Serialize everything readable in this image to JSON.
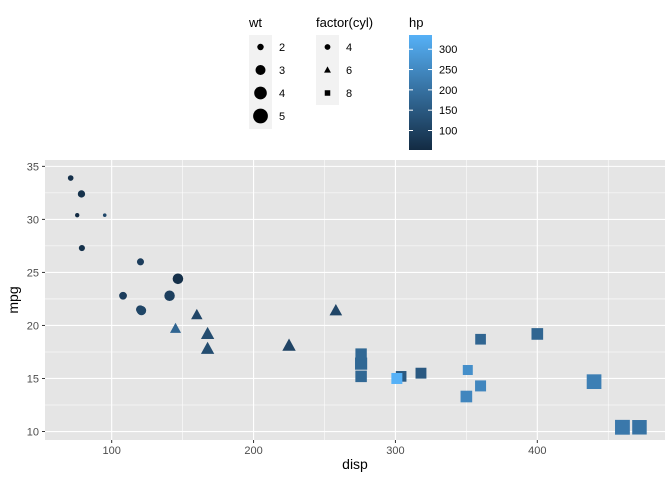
{
  "chart_data": {
    "type": "scatter",
    "title": "",
    "xlabel": "disp",
    "ylabel": "mpg",
    "xlim": [
      53,
      490
    ],
    "ylim": [
      9.2,
      35.6
    ],
    "x_ticks": [
      100,
      200,
      300,
      400
    ],
    "y_ticks": [
      10,
      15,
      20,
      25,
      30,
      35
    ],
    "grid": true,
    "legend_position": "top",
    "colors": {
      "panel_background": "#e5e5e5",
      "grid": "#ffffff",
      "hp_low": "#132b43",
      "hp_high": "#56b1f7"
    },
    "legends": [
      {
        "title": "wt",
        "aesthetic": "size",
        "entries": [
          {
            "label": "2",
            "value": 2
          },
          {
            "label": "3",
            "value": 3
          },
          {
            "label": "4",
            "value": 4
          },
          {
            "label": "5",
            "value": 5
          }
        ]
      },
      {
        "title": "factor(cyl)",
        "aesthetic": "shape",
        "entries": [
          {
            "label": "4",
            "shape": "circle"
          },
          {
            "label": "6",
            "shape": "triangle"
          },
          {
            "label": "8",
            "shape": "square"
          }
        ]
      },
      {
        "title": "hp",
        "aesthetic": "color",
        "range": [
          52,
          335
        ],
        "ticks": [
          {
            "label": "100",
            "value": 100
          },
          {
            "label": "150",
            "value": 150
          },
          {
            "label": "200",
            "value": 200
          },
          {
            "label": "250",
            "value": 250
          },
          {
            "label": "300",
            "value": 300
          }
        ]
      }
    ],
    "points": [
      {
        "disp": 160,
        "mpg": 21.0,
        "cyl": 6,
        "wt": 2.62,
        "hp": 110
      },
      {
        "disp": 160,
        "mpg": 21.0,
        "cyl": 6,
        "wt": 2.875,
        "hp": 110
      },
      {
        "disp": 108,
        "mpg": 22.8,
        "cyl": 4,
        "wt": 2.32,
        "hp": 93
      },
      {
        "disp": 258,
        "mpg": 21.4,
        "cyl": 6,
        "wt": 3.215,
        "hp": 110
      },
      {
        "disp": 360,
        "mpg": 18.7,
        "cyl": 8,
        "wt": 3.44,
        "hp": 175
      },
      {
        "disp": 225,
        "mpg": 18.1,
        "cyl": 6,
        "wt": 3.46,
        "hp": 105
      },
      {
        "disp": 360,
        "mpg": 14.3,
        "cyl": 8,
        "wt": 3.57,
        "hp": 245
      },
      {
        "disp": 146.7,
        "mpg": 24.4,
        "cyl": 4,
        "wt": 3.19,
        "hp": 62
      },
      {
        "disp": 140.8,
        "mpg": 22.8,
        "cyl": 4,
        "wt": 3.15,
        "hp": 95
      },
      {
        "disp": 167.6,
        "mpg": 19.2,
        "cyl": 6,
        "wt": 3.44,
        "hp": 123
      },
      {
        "disp": 167.6,
        "mpg": 17.8,
        "cyl": 6,
        "wt": 3.44,
        "hp": 123
      },
      {
        "disp": 275.8,
        "mpg": 16.4,
        "cyl": 8,
        "wt": 4.07,
        "hp": 180
      },
      {
        "disp": 275.8,
        "mpg": 17.3,
        "cyl": 8,
        "wt": 3.73,
        "hp": 180
      },
      {
        "disp": 275.8,
        "mpg": 15.2,
        "cyl": 8,
        "wt": 3.78,
        "hp": 180
      },
      {
        "disp": 472,
        "mpg": 10.4,
        "cyl": 8,
        "wt": 5.25,
        "hp": 205
      },
      {
        "disp": 460,
        "mpg": 10.4,
        "cyl": 8,
        "wt": 5.424,
        "hp": 215
      },
      {
        "disp": 440,
        "mpg": 14.7,
        "cyl": 8,
        "wt": 5.345,
        "hp": 230
      },
      {
        "disp": 78.7,
        "mpg": 32.4,
        "cyl": 4,
        "wt": 2.2,
        "hp": 66
      },
      {
        "disp": 75.7,
        "mpg": 30.4,
        "cyl": 4,
        "wt": 1.615,
        "hp": 52
      },
      {
        "disp": 71.1,
        "mpg": 33.9,
        "cyl": 4,
        "wt": 1.835,
        "hp": 65
      },
      {
        "disp": 120.1,
        "mpg": 21.5,
        "cyl": 4,
        "wt": 2.465,
        "hp": 97
      },
      {
        "disp": 318,
        "mpg": 15.5,
        "cyl": 8,
        "wt": 3.52,
        "hp": 150
      },
      {
        "disp": 304,
        "mpg": 15.2,
        "cyl": 8,
        "wt": 3.435,
        "hp": 150
      },
      {
        "disp": 350,
        "mpg": 13.3,
        "cyl": 8,
        "wt": 3.84,
        "hp": 245
      },
      {
        "disp": 400,
        "mpg": 19.2,
        "cyl": 8,
        "wt": 3.845,
        "hp": 175
      },
      {
        "disp": 79,
        "mpg": 27.3,
        "cyl": 4,
        "wt": 1.935,
        "hp": 66
      },
      {
        "disp": 120.3,
        "mpg": 26.0,
        "cyl": 4,
        "wt": 2.14,
        "hp": 91
      },
      {
        "disp": 95.1,
        "mpg": 30.4,
        "cyl": 4,
        "wt": 1.513,
        "hp": 113
      },
      {
        "disp": 351,
        "mpg": 15.8,
        "cyl": 8,
        "wt": 3.17,
        "hp": 264
      },
      {
        "disp": 145,
        "mpg": 19.7,
        "cyl": 6,
        "wt": 2.77,
        "hp": 175
      },
      {
        "disp": 301,
        "mpg": 15.0,
        "cyl": 8,
        "wt": 3.57,
        "hp": 335
      },
      {
        "disp": 121,
        "mpg": 21.4,
        "cyl": 4,
        "wt": 2.78,
        "hp": 109
      }
    ]
  }
}
